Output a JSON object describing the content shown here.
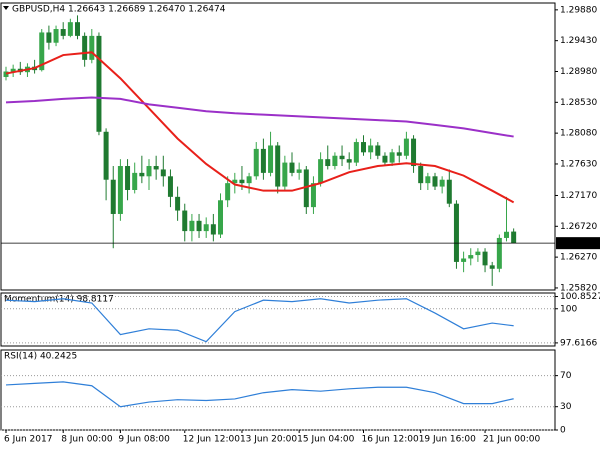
{
  "chart_data": [
    {
      "type": "candlestick",
      "title": "GBPUSD,H4  1.26643 1.26689 1.26470 1.26474",
      "up_color": "#37a64a",
      "down_color": "#1f7a30",
      "open": [
        1.289,
        1.2898,
        1.2902,
        1.2897,
        1.2905,
        1.29,
        1.2955,
        1.294,
        1.296,
        1.295,
        1.297,
        1.295,
        1.2915,
        1.295,
        1.281,
        1.274,
        1.269,
        1.276,
        1.2725,
        1.275,
        1.2745,
        1.276,
        1.2755,
        1.2745,
        1.2715,
        1.2695,
        1.2665,
        1.268,
        1.2665,
        1.2675,
        1.266,
        1.271,
        1.2735,
        1.274,
        1.2735,
        1.2745,
        1.2785,
        1.275,
        1.279,
        1.273,
        1.2765,
        1.275,
        1.2755,
        1.27,
        1.2735,
        1.277,
        1.276,
        1.2775,
        1.277,
        1.2765,
        1.2795,
        1.278,
        1.279,
        1.2775,
        1.2765,
        1.278,
        1.2775,
        1.28,
        1.276,
        1.2735,
        1.2745,
        1.273,
        1.274,
        1.2705,
        1.262,
        1.2625,
        1.263,
        1.2635,
        1.2615,
        1.261,
        1.2655,
        1.26643
      ],
      "high": [
        1.2905,
        1.2908,
        1.2912,
        1.291,
        1.2915,
        1.296,
        1.2965,
        1.2965,
        1.297,
        1.2975,
        1.298,
        1.2955,
        1.296,
        1.2955,
        1.2815,
        1.276,
        1.277,
        1.277,
        1.2765,
        1.2775,
        1.277,
        1.2775,
        1.2775,
        1.2755,
        1.273,
        1.2705,
        1.269,
        1.269,
        1.2685,
        1.269,
        1.272,
        1.2745,
        1.275,
        1.276,
        1.275,
        1.2795,
        1.28,
        1.281,
        1.2795,
        1.2775,
        1.278,
        1.2765,
        1.276,
        1.2745,
        1.278,
        1.279,
        1.278,
        1.279,
        1.278,
        1.28,
        1.2805,
        1.28,
        1.2795,
        1.278,
        1.2785,
        1.279,
        1.281,
        1.2805,
        1.2765,
        1.275,
        1.275,
        1.2745,
        1.2755,
        1.271,
        1.2635,
        1.264,
        1.264,
        1.264,
        1.262,
        1.266,
        1.2715,
        1.26689
      ],
      "low": [
        1.2885,
        1.289,
        1.2893,
        1.289,
        1.2895,
        1.2898,
        1.293,
        1.2935,
        1.2945,
        1.2948,
        1.2945,
        1.2905,
        1.291,
        1.2805,
        1.271,
        1.264,
        1.268,
        1.271,
        1.272,
        1.2735,
        1.2725,
        1.274,
        1.273,
        1.27,
        1.268,
        1.265,
        1.265,
        1.2655,
        1.2655,
        1.265,
        1.2655,
        1.27,
        1.272,
        1.2725,
        1.272,
        1.274,
        1.274,
        1.2745,
        1.272,
        1.2725,
        1.2745,
        1.274,
        1.269,
        1.269,
        1.273,
        1.2755,
        1.2755,
        1.276,
        1.2755,
        1.276,
        1.2775,
        1.277,
        1.277,
        1.276,
        1.276,
        1.2765,
        1.277,
        1.275,
        1.2725,
        1.2725,
        1.2725,
        1.272,
        1.27,
        1.261,
        1.2605,
        1.2615,
        1.262,
        1.2605,
        1.2585,
        1.2605,
        1.265,
        1.2647
      ],
      "close": [
        1.2898,
        1.2902,
        1.2897,
        1.2905,
        1.29,
        1.2955,
        1.294,
        1.296,
        1.295,
        1.297,
        1.295,
        1.2915,
        1.295,
        1.281,
        1.274,
        1.269,
        1.276,
        1.2725,
        1.275,
        1.2745,
        1.276,
        1.2755,
        1.2745,
        1.2715,
        1.2695,
        1.2665,
        1.268,
        1.2665,
        1.2675,
        1.266,
        1.271,
        1.2735,
        1.274,
        1.2735,
        1.2745,
        1.2785,
        1.275,
        1.279,
        1.273,
        1.2765,
        1.275,
        1.2755,
        1.27,
        1.2735,
        1.277,
        1.276,
        1.2775,
        1.277,
        1.2765,
        1.2795,
        1.278,
        1.279,
        1.2775,
        1.2765,
        1.278,
        1.2775,
        1.28,
        1.276,
        1.2735,
        1.2745,
        1.273,
        1.274,
        1.2705,
        1.262,
        1.2625,
        1.263,
        1.2635,
        1.2615,
        1.261,
        1.2655,
        1.2664,
        1.26474
      ],
      "series": [
        {
          "color": "#e8201a",
          "x": [
            0,
            4,
            8,
            12,
            16,
            20,
            24,
            28,
            32,
            36,
            40,
            44,
            48,
            52,
            56,
            60,
            64,
            68,
            71
          ],
          "values": [
            1.2895,
            1.2903,
            1.2922,
            1.2926,
            1.2888,
            1.2844,
            1.28,
            1.2763,
            1.2733,
            1.2724,
            1.2724,
            1.2735,
            1.2751,
            1.276,
            1.2764,
            1.276,
            1.2746,
            1.2724,
            1.2707
          ]
        },
        {
          "color": "#9b30c8",
          "x": [
            0,
            4,
            8,
            12,
            16,
            20,
            24,
            28,
            32,
            36,
            40,
            44,
            48,
            52,
            56,
            60,
            64,
            68,
            71
          ],
          "values": [
            1.2853,
            1.2855,
            1.2858,
            1.286,
            1.2858,
            1.285,
            1.2845,
            1.284,
            1.2837,
            1.2835,
            1.2833,
            1.2831,
            1.2829,
            1.2827,
            1.2825,
            1.282,
            1.2815,
            1.2808,
            1.2803
          ]
        }
      ],
      "price_line": 1.26474,
      "ylim": [
        1.2579,
        1.2998
      ],
      "yticks": [
        {
          "value": 1.2988,
          "label": "1.29880"
        },
        {
          "value": 1.2943,
          "label": "1.29430"
        },
        {
          "value": 1.2898,
          "label": "1.28980"
        },
        {
          "value": 1.2853,
          "label": "1.28530"
        },
        {
          "value": 1.2808,
          "label": "1.28080"
        },
        {
          "value": 1.2763,
          "label": "1.27630"
        },
        {
          "value": 1.2717,
          "label": "1.27170"
        },
        {
          "value": 1.2672,
          "label": "1.26720"
        },
        {
          "value": 1.2627,
          "label": "1.26270"
        },
        {
          "value": 1.2582,
          "label": "1.25820"
        }
      ],
      "xticks": [
        {
          "value": 0,
          "label": "6 Jun 2017"
        },
        {
          "value": 8,
          "label": "8 Jun 00:00"
        },
        {
          "value": 16,
          "label": "9 Jun 08:00"
        },
        {
          "value": 25,
          "label": "12 Jun 12:00"
        },
        {
          "value": 33,
          "label": "13 Jun 20:00"
        },
        {
          "value": 41,
          "label": "15 Jun 04:00"
        },
        {
          "value": 50,
          "label": "16 Jun 12:00"
        },
        {
          "value": 58,
          "label": "19 Jun 16:00"
        },
        {
          "value": 67,
          "label": "21 Jun 00:00"
        }
      ]
    },
    {
      "type": "line",
      "title": "Momentum(14) 98.8117",
      "series": [
        {
          "color": "#2f7fd8",
          "x": [
            0,
            4,
            8,
            12,
            16,
            20,
            24,
            28,
            32,
            36,
            40,
            44,
            48,
            52,
            56,
            60,
            64,
            68,
            71
          ],
          "values": [
            100.6,
            100.5,
            100.7,
            100.4,
            98.2,
            98.6,
            98.5,
            97.7,
            99.8,
            100.6,
            100.5,
            100.7,
            100.4,
            100.6,
            100.7,
            99.7,
            98.6,
            99.0,
            98.8117
          ]
        }
      ],
      "ylim": [
        97.4,
        101.1
      ],
      "yticks": [
        100.8527,
        100,
        97.6166
      ]
    },
    {
      "type": "line",
      "title": "RSI(14) 40.2425",
      "series": [
        {
          "color": "#2f7fd8",
          "x": [
            0,
            4,
            8,
            12,
            16,
            20,
            24,
            28,
            32,
            36,
            40,
            44,
            48,
            52,
            56,
            60,
            64,
            68,
            71
          ],
          "values": [
            58,
            60,
            62,
            57,
            30,
            36,
            39,
            38,
            40,
            48,
            52,
            50,
            53,
            55,
            55,
            48,
            34,
            34,
            40.2425
          ]
        }
      ],
      "ylim": [
        0,
        103
      ],
      "yticks": [
        70,
        30,
        0
      ]
    }
  ]
}
